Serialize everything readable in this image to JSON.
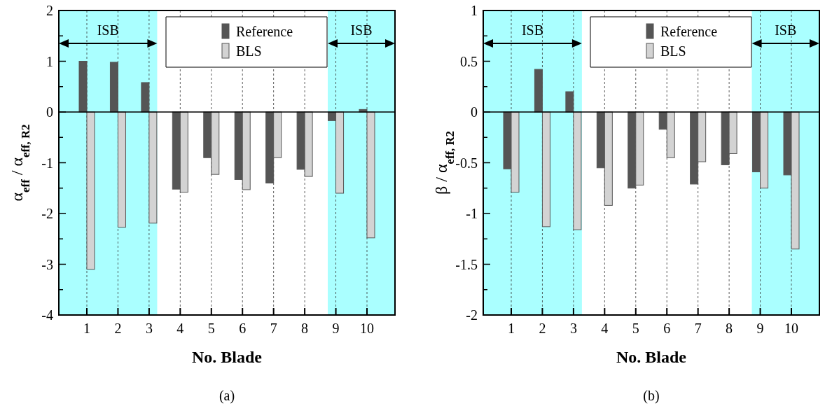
{
  "chart_data": [
    {
      "type": "bar",
      "xlabel": "No. Blade",
      "ylabel": "α$_{eff}$ / α$_{eff, R2}$",
      "x": [
        1,
        2,
        3,
        4,
        5,
        6,
        7,
        8,
        9,
        10
      ],
      "series": [
        {
          "name": "Reference",
          "color": "#555555",
          "values": [
            1.0,
            0.98,
            0.58,
            -1.52,
            -0.9,
            -1.33,
            -1.4,
            -1.13,
            -0.17,
            0.05
          ]
        },
        {
          "name": "BLS",
          "color": "#d3d3d3",
          "values": [
            -3.1,
            -2.27,
            -2.19,
            -1.58,
            -1.23,
            -1.53,
            -0.9,
            -1.27,
            -1.6,
            -2.48
          ]
        }
      ],
      "xlim": [
        0.1,
        10.9
      ],
      "xticks": [
        1,
        2,
        3,
        4,
        5,
        6,
        7,
        8,
        9,
        10
      ],
      "ylim": [
        -4,
        2
      ],
      "yticks": [
        -4,
        {
          "value": -3.5,
          "label": null
        },
        -3,
        {
          "value": -2.5,
          "label": null
        },
        -2,
        {
          "value": -1.5,
          "label": null
        },
        -1,
        {
          "value": -0.5,
          "label": null
        },
        0,
        {
          "value": 0.5,
          "label": null
        },
        1,
        {
          "value": 1.5,
          "label": null
        },
        2
      ],
      "grid": "x",
      "legend": "top",
      "bands": [
        {
          "axis": "x",
          "from": 0.1,
          "to": 3.26,
          "label": "ISB",
          "color": "#aaffff"
        },
        {
          "axis": "x",
          "from": 8.74,
          "to": 10.9,
          "label": "ISB",
          "color": "#aaffff"
        }
      ],
      "ref_lines": [
        {
          "axis": "y",
          "value": 0,
          "color": "#000000",
          "line_style": "solid"
        }
      ],
      "annotations": [
        "(a)"
      ]
    },
    {
      "type": "bar",
      "xlabel": "No. Blade",
      "ylabel": "β / α$_{eff, R2}$",
      "x": [
        1,
        2,
        3,
        4,
        5,
        6,
        7,
        8,
        9,
        10
      ],
      "series": [
        {
          "name": "Reference",
          "color": "#555555",
          "values": [
            -0.56,
            0.42,
            0.2,
            -0.55,
            -0.75,
            -0.17,
            -0.71,
            -0.52,
            -0.59,
            -0.62
          ]
        },
        {
          "name": "BLS",
          "color": "#d3d3d3",
          "values": [
            -0.79,
            -1.13,
            -1.16,
            -0.92,
            -0.72,
            -0.45,
            -0.49,
            -0.41,
            -0.75,
            -1.35
          ]
        }
      ],
      "xlim": [
        0.1,
        10.9
      ],
      "xticks": [
        1,
        2,
        3,
        4,
        5,
        6,
        7,
        8,
        9,
        10
      ],
      "ylim": [
        -2,
        1
      ],
      "yticks": [
        -2,
        {
          "value": -1.75,
          "label": null
        },
        -1.5,
        {
          "value": -1.25,
          "label": null
        },
        -1,
        {
          "value": -0.75,
          "label": null
        },
        -0.5,
        {
          "value": -0.25,
          "label": null
        },
        0,
        {
          "value": 0.25,
          "label": null
        },
        0.5,
        {
          "value": 0.75,
          "label": null
        },
        1
      ],
      "grid": "x",
      "legend": "top",
      "bands": [
        {
          "axis": "x",
          "from": 0.1,
          "to": 3.27,
          "label": "ISB",
          "color": "#aaffff"
        },
        {
          "axis": "x",
          "from": 8.73,
          "to": 10.9,
          "label": "ISB",
          "color": "#aaffff"
        }
      ],
      "ref_lines": [
        {
          "axis": "y",
          "value": 0,
          "color": "#000000",
          "line_style": "solid"
        }
      ],
      "annotations": [
        "(b)"
      ]
    }
  ]
}
